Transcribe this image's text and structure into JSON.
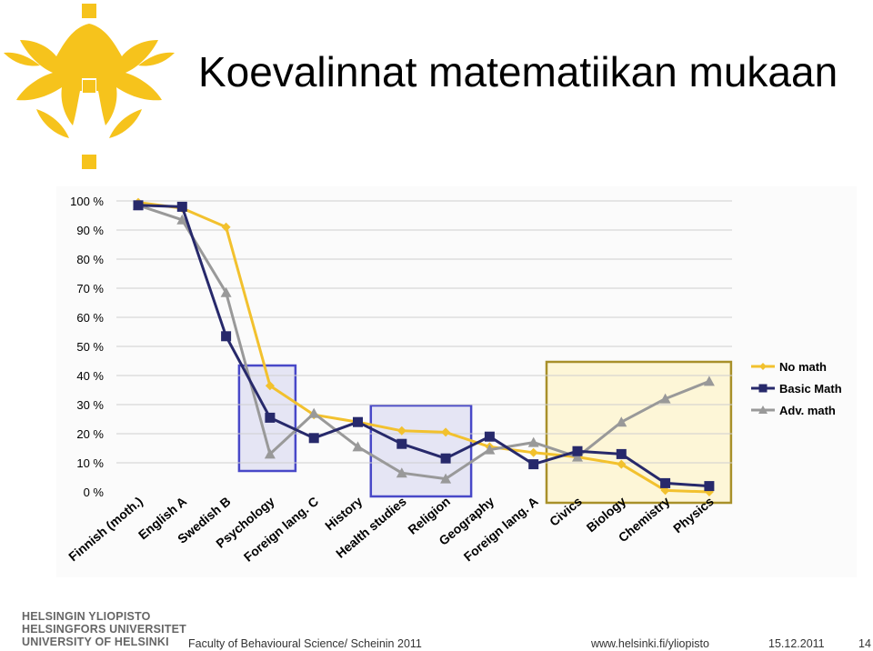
{
  "slide": {
    "title": "Koevalinnat matematiikan mukaan",
    "university_names": [
      "HELSINGIN YLIOPISTO",
      "HELSINGFORS UNIVERSITET",
      "UNIVERSITY OF HELSINKI"
    ],
    "footer_left": "Faculty of Behavioural Science/  Scheinin 2011",
    "footer_url": "www.helsinki.fi/yliopisto",
    "footer_date": "15.12.2011",
    "page_number": "14",
    "logo_icon": "helsinki-flame-logo-icon"
  },
  "chart_data": {
    "type": "line",
    "categories": [
      "Finnish (moth.)",
      "English A",
      "Swedish B",
      "Psychology",
      "Foreign lang. C",
      "History",
      "Health studies",
      "Religion",
      "Geography",
      "Foreign lang. A",
      "Civics",
      "Biology",
      "Chemistry",
      "Physics"
    ],
    "y_ticks": [
      "0 %",
      "10 %",
      "20 %",
      "30 %",
      "40 %",
      "50 %",
      "60 %",
      "70 %",
      "80 %",
      "90 %",
      "100 %"
    ],
    "ylim": [
      0,
      100
    ],
    "grid": true,
    "legend_position": "right",
    "series": [
      {
        "name": "No math",
        "color": "#f2c12e",
        "marker": "diamond",
        "values": [
          99.5,
          97.5,
          91,
          36.5,
          26.5,
          24,
          21,
          20.5,
          15.5,
          13.5,
          12,
          9.5,
          0.5,
          0
        ]
      },
      {
        "name": "Basic Math",
        "color": "#27296b",
        "marker": "square",
        "values": [
          98.5,
          98,
          53.5,
          25.5,
          18.5,
          24,
          16.5,
          11.5,
          19,
          9.5,
          14,
          13,
          3,
          2
        ]
      },
      {
        "name": "Adv. math",
        "color": "#999999",
        "marker": "triangle",
        "values": [
          98.5,
          93.5,
          68.5,
          13,
          27,
          15.5,
          6.5,
          4.5,
          14.5,
          17,
          12,
          24,
          32,
          38
        ]
      }
    ],
    "highlight_groups": [
      {
        "categories": [
          "Psychology"
        ],
        "color": "#4848c8"
      },
      {
        "categories": [
          "Health studies",
          "Religion"
        ],
        "color": "#4848c8"
      },
      {
        "categories": [
          "Civics",
          "Biology",
          "Chemistry",
          "Physics"
        ],
        "color": "#a8902a"
      }
    ]
  }
}
